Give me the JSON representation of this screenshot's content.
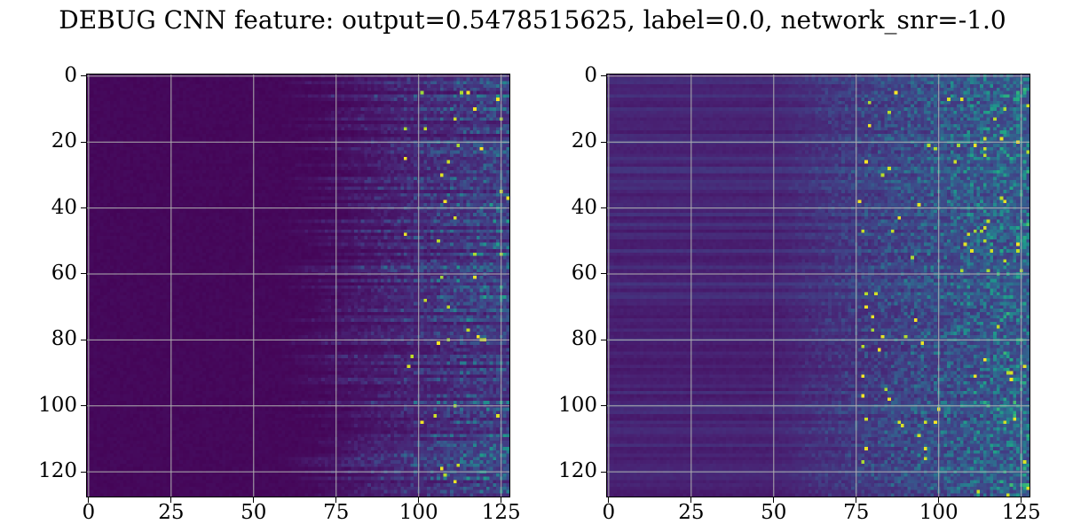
{
  "figure": {
    "suptitle": "DEBUG CNN feature: output=0.5478515625, label=0.0, network_snr=-1.0"
  },
  "chart_data": [
    {
      "type": "heatmap",
      "panel": "left",
      "rows": 128,
      "cols": 128,
      "colormap": "viridis",
      "grid": true,
      "xlim": [
        -0.5,
        127.5
      ],
      "ylim": [
        127.5,
        -0.5
      ],
      "xticks": [
        0,
        25,
        50,
        75,
        100,
        125
      ],
      "yticks": [
        0,
        20,
        40,
        60,
        80,
        100,
        120
      ],
      "xtick_labels": [
        "0",
        "25",
        "50",
        "75",
        "100",
        "125"
      ],
      "ytick_labels": [
        "0",
        "20",
        "40",
        "60",
        "80",
        "100",
        "120"
      ],
      "description_of_values": {
        "near_uniform_low_columns": [
          0,
          55
        ],
        "transition_columns": [
          55,
          95
        ],
        "high_variance_columns": [
          95,
          127
        ],
        "value_range": [
          0,
          1
        ]
      }
    },
    {
      "type": "heatmap",
      "panel": "right",
      "rows": 128,
      "cols": 128,
      "colormap": "viridis",
      "grid": true,
      "xlim": [
        -0.5,
        127.5
      ],
      "ylim": [
        127.5,
        -0.5
      ],
      "xticks": [
        0,
        25,
        50,
        75,
        100,
        125
      ],
      "yticks": [
        0,
        20,
        40,
        60,
        80,
        100,
        120
      ],
      "xtick_labels": [
        "0",
        "25",
        "50",
        "75",
        "100",
        "125"
      ],
      "ytick_labels": [
        "0",
        "20",
        "40",
        "60",
        "80",
        "100",
        "120"
      ],
      "description_of_values": {
        "striped_low_columns": [
          0,
          50
        ],
        "transition_columns": [
          50,
          75
        ],
        "high_variance_columns": [
          75,
          127
        ],
        "value_range": [
          0,
          1
        ]
      }
    }
  ]
}
